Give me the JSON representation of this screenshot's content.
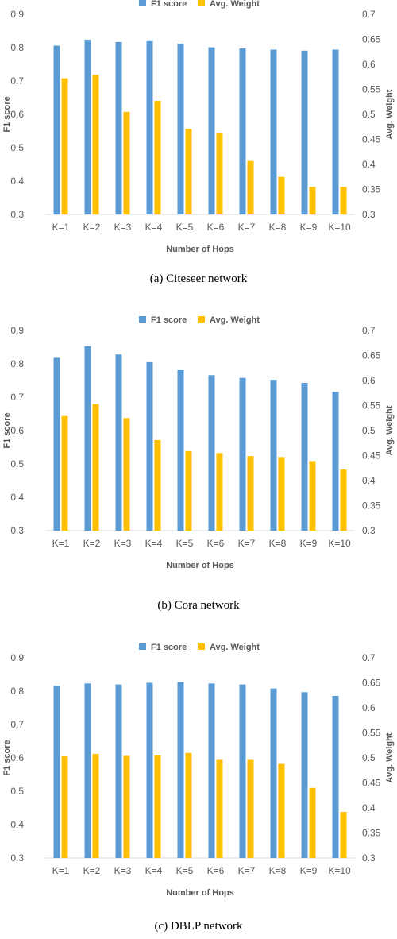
{
  "legend": {
    "f1": "F1 score",
    "avg": "Avg. Weight"
  },
  "colors": {
    "f1": "#5b9bd5",
    "avg": "#ffc000"
  },
  "chart_data": [
    {
      "type": "bar",
      "caption": "(a)  Citeseer network",
      "xlabel": "Number of Hops",
      "ylabel": "F1 score",
      "y2label": "Avg. Weight",
      "categories": [
        "K=1",
        "K=2",
        "K=3",
        "K=4",
        "K=5",
        "K=6",
        "K=7",
        "K=8",
        "K=9",
        "K=10"
      ],
      "ylim": [
        0.3,
        0.9
      ],
      "y2lim": [
        0.3,
        0.7
      ],
      "yticks": [
        "0.3",
        "0.4",
        "0.5",
        "0.6",
        "0.7",
        "0.8",
        "0.9"
      ],
      "y2ticks": [
        "0.3",
        "0.35",
        "0.4",
        "0.45",
        "0.5",
        "0.55",
        "0.6",
        "0.65",
        "0.7"
      ],
      "legend_position": "top-center",
      "series": [
        {
          "name": "F1 score",
          "axis": "left",
          "values": [
            0.806,
            0.824,
            0.817,
            0.822,
            0.812,
            0.801,
            0.798,
            0.794,
            0.791,
            0.794
          ]
        },
        {
          "name": "Avg. Weight",
          "axis": "right",
          "values": [
            0.572,
            0.579,
            0.505,
            0.527,
            0.471,
            0.463,
            0.407,
            0.375,
            0.355,
            0.355
          ]
        }
      ]
    },
    {
      "type": "bar",
      "caption": "(b)  Cora network",
      "xlabel": "Number of Hops",
      "ylabel": "F1 score",
      "y2label": "Avg. Weight",
      "categories": [
        "K=1",
        "K=2",
        "K=3",
        "K=4",
        "K=5",
        "K=6",
        "K=7",
        "K=8",
        "K=9",
        "K=10"
      ],
      "ylim": [
        0.3,
        0.9
      ],
      "y2lim": [
        0.3,
        0.7
      ],
      "yticks": [
        "0.3",
        "0.4",
        "0.5",
        "0.6",
        "0.7",
        "0.8",
        "0.9"
      ],
      "y2ticks": [
        "0.3",
        "0.35",
        "0.4",
        "0.45",
        "0.5",
        "0.55",
        "0.6",
        "0.65",
        "0.7"
      ],
      "legend_position": "top-center",
      "series": [
        {
          "name": "F1 score",
          "axis": "left",
          "values": [
            0.818,
            0.853,
            0.828,
            0.805,
            0.781,
            0.766,
            0.758,
            0.752,
            0.743,
            0.716
          ]
        },
        {
          "name": "Avg. Weight",
          "axis": "right",
          "values": [
            0.529,
            0.553,
            0.525,
            0.481,
            0.459,
            0.455,
            0.449,
            0.447,
            0.439,
            0.422
          ]
        }
      ]
    },
    {
      "type": "bar",
      "caption": "(c)  DBLP network",
      "xlabel": "Number of Hops",
      "ylabel": "F1 score",
      "y2label": "Avg. Weight",
      "categories": [
        "K=1",
        "K=2",
        "K=3",
        "K=4",
        "K=5",
        "K=6",
        "K=7",
        "K=8",
        "K=9",
        "K=10"
      ],
      "ylim": [
        0.3,
        0.9
      ],
      "y2lim": [
        0.3,
        0.7
      ],
      "yticks": [
        "0.3",
        "0.4",
        "0.5",
        "0.6",
        "0.7",
        "0.8",
        "0.9"
      ],
      "y2ticks": [
        "0.3",
        "0.35",
        "0.4",
        "0.45",
        "0.5",
        "0.55",
        "0.6",
        "0.65",
        "0.7"
      ],
      "legend_position": "top-center",
      "series": [
        {
          "name": "F1 score",
          "axis": "left",
          "values": [
            0.816,
            0.823,
            0.82,
            0.825,
            0.827,
            0.823,
            0.82,
            0.808,
            0.797,
            0.786
          ]
        },
        {
          "name": "Avg. Weight",
          "axis": "right",
          "values": [
            0.503,
            0.508,
            0.504,
            0.505,
            0.51,
            0.496,
            0.496,
            0.488,
            0.44,
            0.392
          ]
        }
      ]
    }
  ]
}
